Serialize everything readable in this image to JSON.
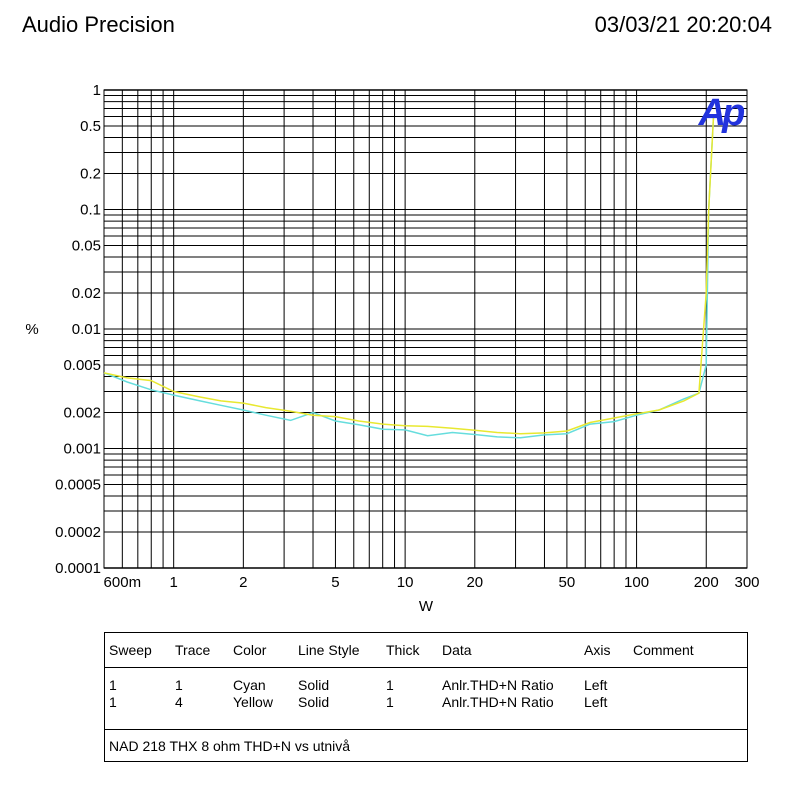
{
  "header": {
    "app_title": "Audio Precision",
    "timestamp": "03/03/21 20:20:04"
  },
  "logo": {
    "text": "Ap",
    "color": "#2233dd"
  },
  "chart_data": {
    "type": "line",
    "xscale": "log",
    "yscale": "log",
    "xlim": [
      0.5,
      300
    ],
    "ylim": [
      0.0001,
      1
    ],
    "xlabel": "W",
    "ylabel": "%",
    "grid": true,
    "x_tick_labels": [
      {
        "v": 0.6,
        "t": "600m"
      },
      {
        "v": 1,
        "t": "1"
      },
      {
        "v": 2,
        "t": "2"
      },
      {
        "v": 5,
        "t": "5"
      },
      {
        "v": 10,
        "t": "10"
      },
      {
        "v": 20,
        "t": "20"
      },
      {
        "v": 50,
        "t": "50"
      },
      {
        "v": 100,
        "t": "100"
      },
      {
        "v": 200,
        "t": "200"
      },
      {
        "v": 300,
        "t": "300"
      }
    ],
    "y_tick_labels": [
      {
        "v": 1,
        "t": "1"
      },
      {
        "v": 0.5,
        "t": "0.5"
      },
      {
        "v": 0.2,
        "t": "0.2"
      },
      {
        "v": 0.1,
        "t": "0.1"
      },
      {
        "v": 0.05,
        "t": "0.05"
      },
      {
        "v": 0.02,
        "t": "0.02"
      },
      {
        "v": 0.01,
        "t": "0.01"
      },
      {
        "v": 0.005,
        "t": "0.005"
      },
      {
        "v": 0.002,
        "t": "0.002"
      },
      {
        "v": 0.001,
        "t": "0.001"
      },
      {
        "v": 0.0005,
        "t": "0.0005"
      },
      {
        "v": 0.0002,
        "t": "0.0002"
      },
      {
        "v": 0.0001,
        "t": "0.0001"
      }
    ],
    "series": [
      {
        "color": "#66dddd",
        "points": [
          [
            0.5,
            0.0043
          ],
          [
            0.63,
            0.0036
          ],
          [
            0.8,
            0.0031
          ],
          [
            1.0,
            0.0028
          ],
          [
            1.3,
            0.0025
          ],
          [
            1.6,
            0.0023
          ],
          [
            2.0,
            0.0021
          ],
          [
            2.5,
            0.0019
          ],
          [
            3.2,
            0.00172
          ],
          [
            4.0,
            0.002
          ],
          [
            5.0,
            0.0017
          ],
          [
            6.3,
            0.00158
          ],
          [
            8.0,
            0.00145
          ],
          [
            10.0,
            0.00143
          ],
          [
            12.5,
            0.00128
          ],
          [
            16.0,
            0.00136
          ],
          [
            20.0,
            0.00131
          ],
          [
            25.0,
            0.00125
          ],
          [
            31.5,
            0.00123
          ],
          [
            40.0,
            0.0013
          ],
          [
            50.0,
            0.00133
          ],
          [
            63.0,
            0.0016
          ],
          [
            80.0,
            0.00168
          ],
          [
            100.0,
            0.0019
          ],
          [
            125.0,
            0.0021
          ],
          [
            160.0,
            0.0026
          ],
          [
            186.0,
            0.0029
          ],
          [
            200.0,
            0.005
          ],
          [
            205.0,
            0.1
          ],
          [
            215.0,
            0.6
          ]
        ]
      },
      {
        "color": "#e8e830",
        "points": [
          [
            0.5,
            0.0043
          ],
          [
            0.63,
            0.0039
          ],
          [
            0.8,
            0.0037
          ],
          [
            1.0,
            0.003
          ],
          [
            1.3,
            0.0027
          ],
          [
            1.6,
            0.0025
          ],
          [
            2.0,
            0.0024
          ],
          [
            2.5,
            0.0022
          ],
          [
            3.2,
            0.00205
          ],
          [
            4.0,
            0.0019
          ],
          [
            5.0,
            0.00185
          ],
          [
            6.3,
            0.0017
          ],
          [
            8.0,
            0.0016
          ],
          [
            10.0,
            0.00155
          ],
          [
            12.5,
            0.00153
          ],
          [
            16.0,
            0.00148
          ],
          [
            20.0,
            0.00142
          ],
          [
            25.0,
            0.00136
          ],
          [
            31.5,
            0.00133
          ],
          [
            40.0,
            0.00135
          ],
          [
            50.0,
            0.0014
          ],
          [
            63.0,
            0.00165
          ],
          [
            80.0,
            0.0018
          ],
          [
            100.0,
            0.00195
          ],
          [
            125.0,
            0.0021
          ],
          [
            160.0,
            0.0025
          ],
          [
            186.0,
            0.0029
          ],
          [
            200.0,
            0.02
          ],
          [
            205.0,
            0.1
          ],
          [
            215.0,
            0.6
          ]
        ]
      }
    ]
  },
  "legend": {
    "headers": [
      "Sweep",
      "Trace",
      "Color",
      "Line Style",
      "Thick",
      "Data",
      "Axis",
      "Comment"
    ],
    "rows": [
      [
        "1",
        "1",
        "Cyan",
        "Solid",
        "1",
        "Anlr.THD+N Ratio",
        "Left",
        ""
      ],
      [
        "1",
        "4",
        "Yellow",
        "Solid",
        "1",
        "Anlr.THD+N Ratio",
        "Left",
        ""
      ]
    ],
    "note": "NAD 218 THX 8 ohm THD+N vs utnivå"
  }
}
